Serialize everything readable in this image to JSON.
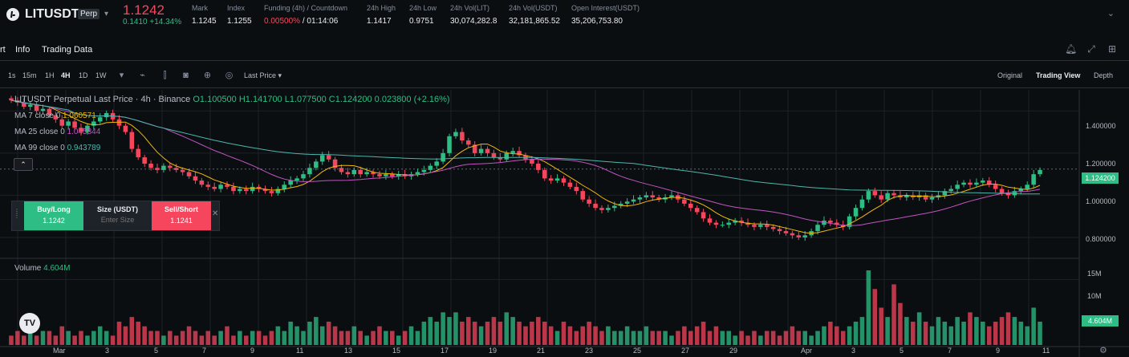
{
  "ticker": {
    "symbol": "LITUSDT",
    "badge": "Perp",
    "last_price": "1.1242",
    "change": "0.1410 +14.34%",
    "stats": [
      {
        "label": "Mark",
        "value": "1.1245"
      },
      {
        "label": "Index",
        "value": "1.1255"
      },
      {
        "label": "Funding (4h) / Countdown",
        "value_red": "0.00500%",
        "value": " / 01:14:06"
      },
      {
        "label": "24h High",
        "value": "1.1417"
      },
      {
        "label": "24h Low",
        "value": "0.9751"
      },
      {
        "label": "24h Vol(LIT)",
        "value": "30,074,282.8"
      },
      {
        "label": "24h Vol(USDT)",
        "value": "32,181,865.52"
      },
      {
        "label": "Open Interest(USDT)",
        "value": "35,206,753.80"
      }
    ]
  },
  "tabs": [
    "rt",
    "Info",
    "Trading Data"
  ],
  "toolbar": {
    "timeframes": [
      "1s",
      "15m",
      "1H",
      "4H",
      "1D",
      "1W"
    ],
    "active_timeframe": "4H",
    "price_type": "Last Price",
    "views": [
      "Original",
      "Trading View",
      "Depth"
    ],
    "active_view": "Trading View"
  },
  "legend": {
    "title": "LITUSDT Perpetual Last Price · 4h · Binance",
    "ohlc": "O1.100500 H1.141700 L1.077500 C1.124200 0.023800 (+2.16%)",
    "ma7_label": "MA 7 close 0",
    "ma7_value": "1.060571",
    "ma25_label": "MA 25 close 0",
    "ma25_value": "1.045844",
    "ma99_label": "MA 99 close 0",
    "ma99_value": "0.943789"
  },
  "order": {
    "buy_label": "Buy/Long",
    "buy_price": "1.1242",
    "size_label": "Size (USDT)",
    "size_placeholder": "Enter Size",
    "sell_label": "Sell/Short",
    "sell_price": "1.1241"
  },
  "volume": {
    "label": "Volume",
    "value": "4.604M"
  },
  "axis": {
    "price_ticks": [
      "1.400000",
      "1.200000",
      "1.000000",
      "0.800000"
    ],
    "current_price": "1.124200",
    "volume_ticks": [
      "15M",
      "10M"
    ],
    "current_volume": "4.604M",
    "dates": [
      "Mar",
      "3",
      "5",
      "7",
      "9",
      "11",
      "13",
      "15",
      "17",
      "19",
      "21",
      "23",
      "25",
      "27",
      "29",
      "Apr",
      "3",
      "5",
      "7",
      "9",
      "11"
    ]
  },
  "colors": {
    "up": "#2ebd85",
    "down": "#f6465d",
    "ma7": "#f0b90b",
    "ma25": "#c154c1",
    "ma99": "#4db6ac"
  },
  "chart_data": {
    "type": "candlestick",
    "title": "LITUSDT Perpetual Last Price · 4h · Binance",
    "y_range": [
      0.72,
      1.5
    ],
    "closes": [
      1.45,
      1.44,
      1.42,
      1.43,
      1.4,
      1.41,
      1.38,
      1.36,
      1.33,
      1.35,
      1.32,
      1.3,
      1.33,
      1.35,
      1.37,
      1.39,
      1.36,
      1.33,
      1.3,
      1.22,
      1.18,
      1.15,
      1.13,
      1.12,
      1.14,
      1.13,
      1.12,
      1.11,
      1.09,
      1.07,
      1.05,
      1.04,
      1.03,
      1.05,
      1.04,
      1.02,
      1.03,
      1.02,
      1.04,
      1.03,
      1.02,
      1.01,
      1.03,
      1.05,
      1.07,
      1.08,
      1.1,
      1.13,
      1.16,
      1.19,
      1.17,
      1.13,
      1.11,
      1.1,
      1.12,
      1.1,
      1.11,
      1.1,
      1.09,
      1.1,
      1.09,
      1.1,
      1.09,
      1.1,
      1.11,
      1.12,
      1.14,
      1.16,
      1.2,
      1.28,
      1.3,
      1.26,
      1.24,
      1.2,
      1.22,
      1.2,
      1.18,
      1.17,
      1.2,
      1.21,
      1.19,
      1.17,
      1.15,
      1.12,
      1.08,
      1.07,
      1.08,
      1.06,
      1.04,
      1.02,
      0.98,
      0.96,
      0.94,
      0.93,
      0.94,
      0.95,
      0.96,
      0.97,
      0.98,
      0.99,
      1.0,
      0.99,
      0.98,
      0.99,
      1.0,
      0.98,
      0.96,
      0.94,
      0.92,
      0.89,
      0.87,
      0.86,
      0.86,
      0.87,
      0.88,
      0.87,
      0.86,
      0.85,
      0.86,
      0.85,
      0.84,
      0.83,
      0.82,
      0.81,
      0.8,
      0.81,
      0.83,
      0.86,
      0.88,
      0.87,
      0.86,
      0.85,
      0.9,
      0.94,
      0.98,
      1.02,
      1.0,
      0.98,
      1.01,
      1.0,
      0.99,
      1.0,
      0.99,
      1.0,
      0.98,
      0.99,
      1.0,
      1.02,
      1.03,
      1.05,
      1.06,
      1.05,
      1.06,
      1.07,
      1.05,
      1.03,
      1.01,
      1.0,
      1.02,
      1.03,
      1.05,
      1.1,
      1.12
    ],
    "volumes_m": [
      2,
      3,
      2,
      4,
      2,
      3,
      3,
      2,
      4,
      3,
      2,
      3,
      2,
      3,
      4,
      3,
      2,
      5,
      4,
      6,
      5,
      4,
      3,
      3,
      2,
      3,
      2,
      3,
      4,
      3,
      2,
      3,
      2,
      3,
      4,
      2,
      3,
      2,
      3,
      3,
      2,
      3,
      4,
      3,
      5,
      4,
      3,
      5,
      6,
      4,
      5,
      4,
      3,
      3,
      4,
      3,
      2,
      3,
      4,
      3,
      3,
      2,
      3,
      4,
      3,
      5,
      6,
      5,
      7,
      6,
      7,
      5,
      6,
      5,
      4,
      5,
      6,
      5,
      7,
      6,
      5,
      4,
      5,
      6,
      5,
      4,
      3,
      5,
      4,
      3,
      4,
      5,
      4,
      3,
      4,
      3,
      3,
      4,
      3,
      3,
      4,
      3,
      3,
      3,
      2,
      3,
      4,
      3,
      4,
      5,
      3,
      4,
      3,
      3,
      2,
      3,
      2,
      3,
      2,
      3,
      3,
      2,
      3,
      4,
      3,
      3,
      2,
      3,
      4,
      5,
      4,
      3,
      4,
      5,
      6,
      16,
      12,
      8,
      6,
      13,
      9,
      6,
      5,
      7,
      5,
      4,
      6,
      5,
      4,
      6,
      5,
      7,
      6,
      5,
      4,
      5,
      6,
      7,
      6,
      5,
      4,
      8,
      5
    ]
  }
}
